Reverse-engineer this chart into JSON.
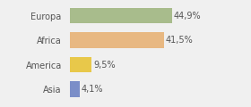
{
  "categories": [
    "Europa",
    "Africa",
    "America",
    "Asia"
  ],
  "values": [
    44.9,
    41.5,
    9.5,
    4.1
  ],
  "labels": [
    "44,9%",
    "41,5%",
    "9,5%",
    "4,1%"
  ],
  "bar_colors": [
    "#a8bc8c",
    "#e8b882",
    "#e8c84a",
    "#7b8ec8"
  ],
  "background_color": "#f0f0f0",
  "xlim": [
    0,
    60
  ],
  "label_fontsize": 7,
  "category_fontsize": 7
}
